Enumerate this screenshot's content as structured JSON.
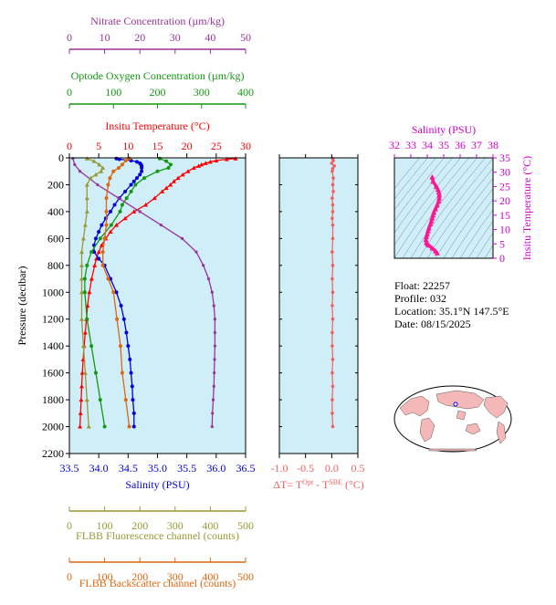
{
  "info": {
    "float": "Float:  22257",
    "profile": "Profile:  032",
    "location": "Location:  35.1°N  147.5°E",
    "date": "Date:  08/15/2025"
  },
  "colors": {
    "panel_bg": "#d0eef8",
    "temperature": "#ff0000",
    "salinity": "#0000dd",
    "oxygen": "#119911",
    "nitrate": "#993399",
    "fluorescence": "#999933",
    "backscatter": "#dd6611",
    "delta_t": "#f06060",
    "ts_curve": "#ff1493",
    "ts_axis": "#d000d0"
  },
  "chart_data": [
    {
      "type": "line",
      "title": "",
      "ylabel": "Pressure (decibar)",
      "ylim": [
        2200,
        0
      ],
      "yticks": [
        "0",
        "200",
        "400",
        "600",
        "800",
        "1000",
        "1200",
        "1400",
        "1600",
        "1800",
        "2000",
        "2200"
      ],
      "axes": [
        {
          "key": "temperature",
          "label": "Insitu Temperature (°C)",
          "position": "top",
          "range": [
            0,
            30
          ],
          "ticks": [
            "0",
            "5",
            "10",
            "15",
            "20",
            "25",
            "30"
          ]
        },
        {
          "key": "oxygen",
          "label": "Optode Oxygen Concentration (µm/kg)",
          "position": "top-2",
          "range": [
            0,
            400
          ],
          "ticks": [
            "0",
            "100",
            "200",
            "300",
            "400"
          ]
        },
        {
          "key": "nitrate",
          "label": "Nitrate Concentration (µm/kg)",
          "position": "top-3",
          "range": [
            0,
            50
          ],
          "ticks": [
            "0",
            "10",
            "20",
            "30",
            "40",
            "50"
          ]
        },
        {
          "key": "salinity",
          "label": "Salinity (PSU)",
          "position": "bottom",
          "range": [
            33.5,
            36.5
          ],
          "ticks": [
            "33.5",
            "34.0",
            "34.5",
            "35.0",
            "35.5",
            "36.0",
            "36.5"
          ]
        },
        {
          "key": "fluorescence",
          "label": "FLBB Fluorescence channel (counts)",
          "position": "bottom-2",
          "range": [
            0,
            500
          ],
          "ticks": [
            "0",
            "100",
            "200",
            "300",
            "400",
            "500"
          ]
        },
        {
          "key": "backscatter",
          "label": "FLBB Backscatter channel (counts)",
          "position": "bottom-3",
          "range": [
            0,
            500
          ],
          "ticks": [
            "0",
            "100",
            "200",
            "300",
            "400",
            "500"
          ]
        }
      ],
      "series": [
        {
          "key": "temperature",
          "pressure": [
            5,
            10,
            20,
            30,
            40,
            50,
            60,
            75,
            100,
            125,
            150,
            175,
            200,
            225,
            250,
            300,
            350,
            400,
            450,
            500,
            550,
            600,
            650,
            700,
            750,
            800,
            900,
            1000,
            1100,
            1200,
            1300,
            1400,
            1500,
            1600,
            1700,
            1800,
            1900,
            2000
          ],
          "values": [
            28.3,
            26.8,
            25.0,
            24.0,
            23.2,
            22.5,
            22.0,
            21.2,
            20.2,
            19.3,
            18.5,
            17.8,
            17.2,
            16.5,
            15.8,
            14.5,
            13.0,
            11.0,
            9.5,
            8.0,
            7.0,
            6.2,
            5.5,
            5.0,
            4.6,
            4.3,
            3.8,
            3.4,
            3.1,
            2.9,
            2.7,
            2.5,
            2.35,
            2.2,
            2.1,
            2.0,
            1.9,
            1.8
          ]
        },
        {
          "key": "salinity",
          "pressure": [
            5,
            10,
            20,
            30,
            40,
            50,
            60,
            75,
            100,
            125,
            150,
            175,
            200,
            250,
            300,
            350,
            400,
            450,
            500,
            550,
            600,
            650,
            700,
            750,
            800,
            900,
            1000,
            1100,
            1200,
            1300,
            1400,
            1500,
            1600,
            1700,
            1800,
            1900,
            2000
          ],
          "values": [
            34.3,
            34.35,
            34.55,
            34.65,
            34.7,
            34.72,
            34.73,
            34.73,
            34.73,
            34.7,
            34.65,
            34.6,
            34.55,
            34.45,
            34.35,
            34.27,
            34.2,
            34.12,
            34.05,
            34.0,
            33.95,
            33.92,
            33.92,
            34.0,
            34.1,
            34.2,
            34.3,
            34.38,
            34.43,
            34.47,
            34.5,
            34.53,
            34.55,
            34.57,
            34.58,
            34.6,
            34.6
          ]
        },
        {
          "key": "oxygen",
          "pressure": [
            5,
            25,
            50,
            75,
            100,
            150,
            200,
            250,
            300,
            350,
            400,
            500,
            600,
            700,
            800,
            900,
            1000,
            1200,
            1400,
            1600,
            1800,
            2000
          ],
          "values": [
            205,
            220,
            230,
            225,
            200,
            170,
            150,
            140,
            130,
            120,
            115,
            95,
            70,
            50,
            40,
            35,
            35,
            40,
            50,
            60,
            70,
            80
          ]
        },
        {
          "key": "nitrate",
          "pressure": [
            5,
            50,
            100,
            200,
            300,
            400,
            500,
            600,
            700,
            800,
            900,
            1000,
            1100,
            1200,
            1300,
            1400,
            1500,
            1600,
            1700,
            1800,
            1900,
            2000
          ],
          "values": [
            1,
            1.5,
            3,
            8,
            14,
            20,
            26,
            32,
            36,
            38,
            39.5,
            40.5,
            41,
            41.3,
            41.3,
            41.3,
            41.2,
            41.1,
            41,
            40.8,
            40.6,
            40.5
          ]
        },
        {
          "key": "fluorescence",
          "pressure": [
            5,
            25,
            50,
            75,
            100,
            125,
            150,
            200,
            300,
            400,
            500,
            600,
            700,
            800,
            900,
            1000,
            1200,
            1400,
            1600,
            1800,
            2000
          ],
          "values": [
            50,
            70,
            85,
            95,
            90,
            75,
            60,
            50,
            50,
            50,
            45,
            40,
            35,
            35,
            35,
            35,
            35,
            40,
            45,
            50,
            55
          ]
        },
        {
          "key": "backscatter",
          "pressure": [
            5,
            20,
            50,
            75,
            100,
            150,
            200,
            300,
            400,
            500,
            600,
            700,
            800,
            900,
            1000,
            1200,
            1400,
            1600,
            1800,
            2000
          ],
          "values": [
            170,
            160,
            150,
            140,
            125,
            115,
            110,
            105,
            105,
            105,
            100,
            95,
            95,
            110,
            125,
            135,
            145,
            150,
            160,
            170
          ]
        }
      ]
    },
    {
      "type": "line",
      "title": "",
      "xlabel": "ΔT= TOpt - TSBE (°C)",
      "xlim": [
        -1.0,
        0.5
      ],
      "xticks": [
        "-1.0",
        "-0.5",
        "0.0",
        "0.5"
      ],
      "ylim": [
        2200,
        0
      ],
      "series": [
        {
          "key": "delta_t",
          "pressure": [
            5,
            20,
            40,
            60,
            80,
            100,
            150,
            200,
            250,
            300,
            350,
            400,
            450,
            500,
            600,
            700,
            800,
            900,
            1000,
            1100,
            1200,
            1300,
            1400,
            1500,
            1600,
            1700,
            1800,
            1900,
            2000
          ],
          "values": [
            0.02,
            0.03,
            0.0,
            0.05,
            0.02,
            0.01,
            0.03,
            0.02,
            0.03,
            0.01,
            0.02,
            0.02,
            0.01,
            0.02,
            0.02,
            0.01,
            0.02,
            0.01,
            0.02,
            0.01,
            0.02,
            0.01,
            0.01,
            0.02,
            0.01,
            0.02,
            0.01,
            0.01,
            0.02
          ]
        }
      ]
    },
    {
      "type": "scatter",
      "title": "",
      "xlabel": "Salinity (PSU)",
      "ylabel": "Insitu Temperature (°C)",
      "xlim": [
        32,
        38
      ],
      "xticks": [
        "32",
        "33",
        "34",
        "35",
        "36",
        "37",
        "38"
      ],
      "ylim": [
        0,
        35
      ],
      "yticks": [
        "0",
        "5",
        "10",
        "15",
        "20",
        "25",
        "30",
        "35"
      ],
      "series": [
        {
          "key": "ts_curve",
          "x": [
            34.3,
            34.35,
            34.55,
            34.65,
            34.7,
            34.73,
            34.73,
            34.7,
            34.6,
            34.5,
            34.4,
            34.35,
            34.3,
            34.25,
            34.2,
            34.1,
            34.05,
            34.0,
            33.95,
            33.92,
            33.95,
            34.0,
            34.1,
            34.3,
            34.5,
            34.6
          ],
          "y": [
            28.3,
            26.8,
            25.0,
            24.0,
            23.0,
            22.0,
            21.0,
            20.0,
            18.5,
            17.2,
            16.0,
            15.0,
            14.0,
            13.0,
            12.0,
            10.5,
            9.5,
            8.5,
            7.5,
            6.5,
            5.5,
            5.0,
            4.5,
            3.5,
            2.5,
            1.8
          ]
        }
      ]
    }
  ]
}
